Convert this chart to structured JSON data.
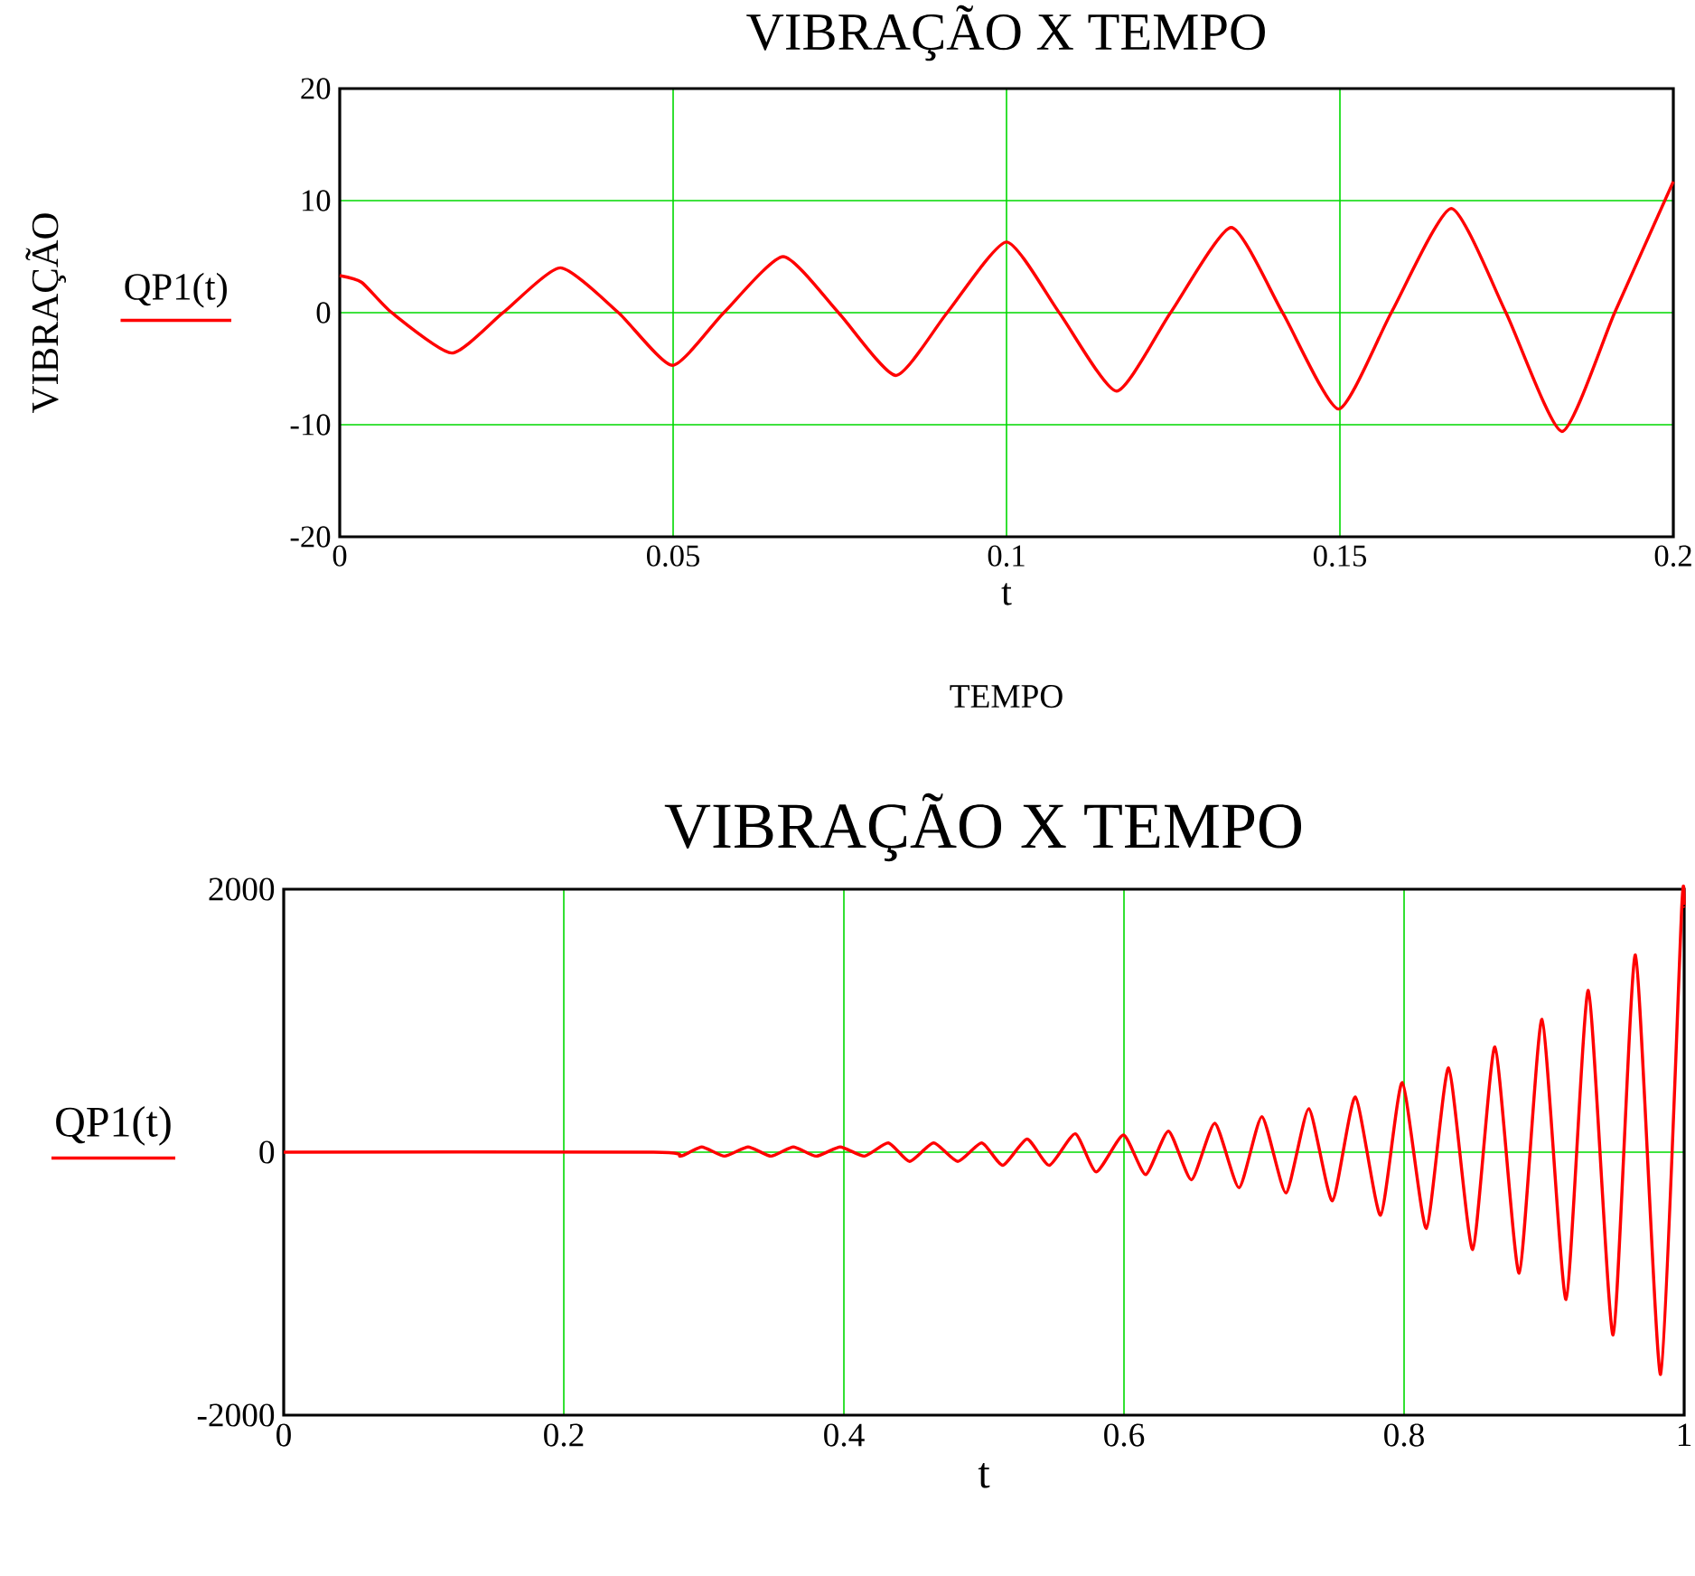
{
  "chart_data": [
    {
      "type": "line",
      "title": "VIBRAÇÃO X TEMPO",
      "xlabel": "t",
      "ylabel": "VIBRAÇÃO",
      "annotations": [
        "TEMPO"
      ],
      "legend": "left",
      "grid": true,
      "marker": "none",
      "line_style": "solid",
      "xlim": [
        0,
        0.2
      ],
      "ylim": [
        -20,
        20
      ],
      "xticks": [
        0,
        0.05,
        0.1,
        0.15,
        0.2
      ],
      "yticks": [
        -20,
        -10,
        0,
        10,
        20
      ],
      "series": [
        {
          "name": "QP1(t)",
          "color": "#ff0000",
          "x": [
            0,
            0.0033,
            0.0078,
            0.0168,
            0.0245,
            0.0331,
            0.0418,
            0.0499,
            0.0576,
            0.0665,
            0.0748,
            0.0834,
            0.0911,
            0.1,
            0.1079,
            0.1165,
            0.1246,
            0.1337,
            0.1414,
            0.1498,
            0.1577,
            0.1667,
            0.1749,
            0.1833,
            0.1912,
            0.2
          ],
          "values": [
            3.3,
            2.7,
            0,
            -3.6,
            0,
            4.0,
            0,
            -4.7,
            0,
            5.0,
            0,
            -5.6,
            0,
            6.3,
            0,
            -7.0,
            0,
            7.6,
            0,
            -8.6,
            0,
            9.3,
            0,
            -10.6,
            0,
            11.7
          ]
        }
      ]
    },
    {
      "type": "line",
      "title": "VIBRAÇÃO X TEMPO",
      "xlabel": "t",
      "legend": "left",
      "grid": true,
      "marker": "none",
      "line_style": "solid",
      "xlim": [
        0,
        1
      ],
      "ylim": [
        -2000,
        2000
      ],
      "xticks": [
        0,
        0.2,
        0.4,
        0.6,
        0.8,
        1
      ],
      "yticks": [
        -2000,
        0,
        2000
      ],
      "series": [
        {
          "name": "QP1(t)",
          "color": "#ff0000",
          "x": [
            0,
            0.2641,
            0.2834,
            0.2985,
            0.3148,
            0.3316,
            0.348,
            0.3639,
            0.3802,
            0.3974,
            0.4146,
            0.4318,
            0.4469,
            0.4641,
            0.4813,
            0.4985,
            0.5135,
            0.5308,
            0.5467,
            0.5652,
            0.5802,
            0.5996,
            0.6155,
            0.6318,
            0.6482,
            0.6649,
            0.6822,
            0.6985,
            0.7157,
            0.732,
            0.7488,
            0.7652,
            0.7832,
            0.7987,
            0.8159,
            0.8318,
            0.849,
            0.8649,
            0.8822,
            0.8985,
            0.9157,
            0.9316,
            0.9493,
            0.9652,
            0.9832,
            0.9983,
            1
          ],
          "values": [
            0,
            0,
            -30,
            40,
            -30,
            40,
            -30,
            40,
            -30,
            40,
            -30,
            70,
            -70,
            70,
            -70,
            70,
            -100,
            100,
            -100,
            140,
            -150,
            130,
            -170,
            160,
            -210,
            220,
            -270,
            270,
            -310,
            330,
            -370,
            420,
            -480,
            530,
            -580,
            640,
            -740,
            800,
            -920,
            1010,
            -1120,
            1230,
            -1390,
            1500,
            -1690,
            1870,
            1870
          ]
        }
      ]
    }
  ]
}
